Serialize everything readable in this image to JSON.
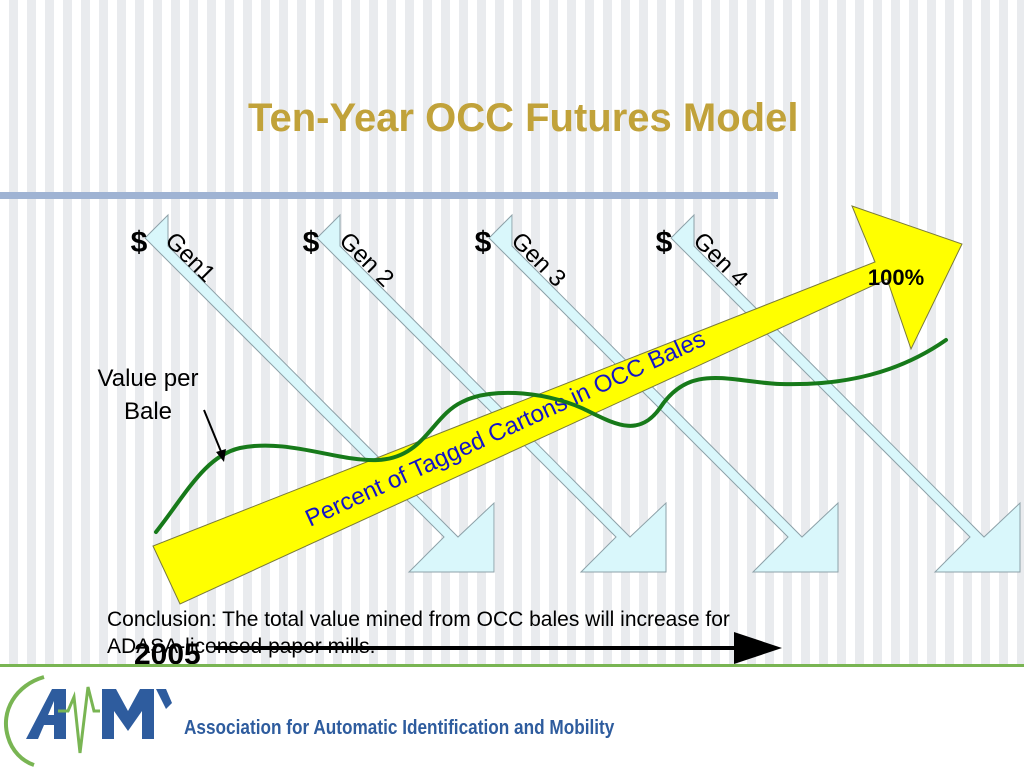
{
  "slide": {
    "title": "Ten-Year OCC Futures Model",
    "colors": {
      "title": "#c1a23a",
      "rule": "#9fb3d3",
      "generation_arrow": "#d9f7fb",
      "percent_arrow": "#ffff00",
      "value_curve": "#177a1a",
      "footer_line": "#79b553",
      "logo_blue": "#2e5c9e"
    }
  },
  "diagram": {
    "generations": [
      {
        "currency": "$",
        "label": "Gen1"
      },
      {
        "currency": "$",
        "label": "Gen 2"
      },
      {
        "currency": "$",
        "label": "Gen 3"
      },
      {
        "currency": "$",
        "label": "Gen 4"
      }
    ],
    "percent_arrow_label": "Percent of Tagged Cartons in OCC Bales",
    "percent_max_label": "100%",
    "value_label": "Value per Bale",
    "timeline_start": "2005"
  },
  "conclusion": "Conclusion: The total value mined from OCC bales will increase for ADASA-licensed paper mills.",
  "footer": {
    "logo_text": "AIM",
    "organization": "Association for Automatic Identification and Mobility"
  }
}
